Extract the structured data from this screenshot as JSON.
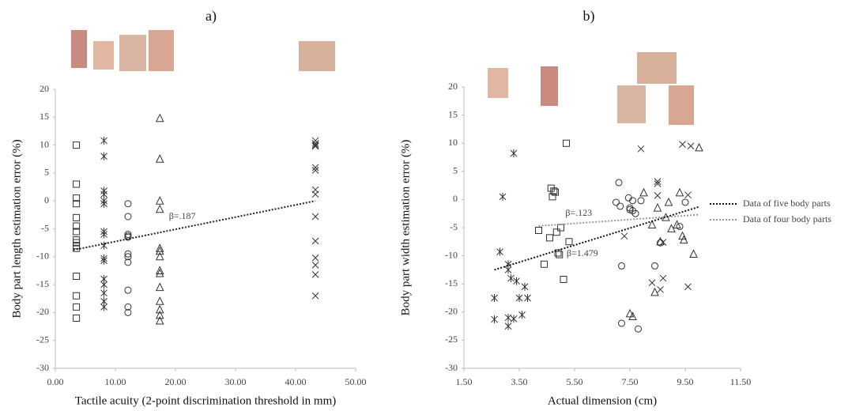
{
  "chart_data": [
    {
      "type": "scatter",
      "title": "a)",
      "xlabel": "Tactile acuity (2-point discrimination threshold in mm)",
      "ylabel": "Body part length estimation error (%)",
      "xlim": [
        0,
        50
      ],
      "ylim": [
        -30,
        20
      ],
      "xticks": [
        {
          "value": 0,
          "label": "0.00"
        },
        {
          "value": 10,
          "label": "10.00"
        },
        {
          "value": 20,
          "label": "20.00"
        },
        {
          "value": 30,
          "label": "30.00"
        },
        {
          "value": 40,
          "label": "40.00"
        },
        {
          "value": 50,
          "label": "50.00"
        }
      ],
      "yticks": [
        -30,
        -25,
        -20,
        -15,
        -10,
        -5,
        0,
        5,
        10,
        15,
        20
      ],
      "series": [
        {
          "marker": "square",
          "color": "#333333",
          "x": [
            3.5,
            3.5,
            3.5,
            3.5,
            3.5,
            3.5,
            3.5,
            3.5,
            3.5,
            3.5,
            3.5,
            3.5,
            3.5,
            3.5,
            3.5
          ],
          "values": [
            10,
            3,
            0.5,
            -0.5,
            -3,
            -4.5,
            -5.5,
            -7,
            -7.5,
            -8,
            -8.5,
            -13.5,
            -17,
            -19,
            -21
          ]
        },
        {
          "marker": "asterisk",
          "color": "#333333",
          "x": [
            8.1,
            8.1,
            8.1,
            8.1,
            8.1,
            8.1,
            8.1,
            8.1,
            8.1,
            8.1,
            8.1,
            8.1,
            8.1,
            8.1,
            8.1,
            8.1
          ],
          "values": [
            10.8,
            8,
            1.8,
            1.2,
            0,
            -0.5,
            -5.5,
            -6,
            -8,
            -10.3,
            -10.7,
            -14,
            -15,
            -16.5,
            -18,
            -19
          ]
        },
        {
          "marker": "circle",
          "color": "#333333",
          "x": [
            12.1,
            12.1,
            12.1,
            12.1,
            12.1,
            12.1,
            12.1,
            12.1,
            12.1,
            12.1,
            12.1
          ],
          "values": [
            -0.5,
            -2.8,
            -6,
            -6.3,
            -6.5,
            -9.5,
            -10,
            -11,
            -16,
            -19,
            -20
          ]
        },
        {
          "marker": "triangle",
          "color": "#333333",
          "x": [
            17.4,
            17.4,
            17.4,
            17.4,
            17.4,
            17.4,
            17.4,
            17.4,
            17.4,
            17.4,
            17.4,
            17.4,
            17.4,
            17.4
          ],
          "values": [
            14.8,
            7.5,
            0,
            -1.5,
            -8.5,
            -9,
            -10,
            -12.5,
            -13,
            -15.5,
            -18,
            -19.5,
            -20.5,
            -21.5
          ]
        },
        {
          "marker": "cross",
          "color": "#333333",
          "x": [
            43.3,
            43.3,
            43.3,
            43.3,
            43.3,
            43.3,
            43.3,
            43.3,
            43.3,
            43.3,
            43.3,
            43.3,
            43.3,
            43.3
          ],
          "values": [
            10.8,
            10.3,
            10,
            9.8,
            6,
            5.5,
            2,
            1.2,
            -2.8,
            -7.2,
            -10.2,
            -11.5,
            -13.2,
            -17
          ]
        }
      ],
      "lines": [
        {
          "color": "#222222",
          "x": [
            3,
            43.3
          ],
          "values": [
            -8.8,
            0
          ],
          "label": "β=.187"
        }
      ]
    },
    {
      "type": "scatter",
      "title": "b)",
      "xlabel": "Actual dimension (cm)",
      "ylabel": "Body part width estimation error (%)",
      "xlim": [
        1.5,
        11.5
      ],
      "ylim": [
        -30,
        20
      ],
      "xticks": [
        {
          "value": 1.5,
          "label": "1.50"
        },
        {
          "value": 3.5,
          "label": "3.50"
        },
        {
          "value": 5.5,
          "label": "5.50"
        },
        {
          "value": 7.5,
          "label": "7.50"
        },
        {
          "value": 9.5,
          "label": "9.50"
        },
        {
          "value": 11.5,
          "label": "11.50"
        }
      ],
      "yticks": [
        -30,
        -25,
        -20,
        -15,
        -10,
        -5,
        0,
        5,
        10,
        15,
        20
      ],
      "legend": "right",
      "series": [
        {
          "marker": "square",
          "color": "#333333",
          "x": [
            4.2,
            4.4,
            4.6,
            4.65,
            4.75,
            4.7,
            4.8,
            4.85,
            4.9,
            4.95,
            5.0,
            5.1,
            5.2,
            5.3
          ],
          "values": [
            -5.5,
            -11.5,
            -6.8,
            2,
            1.5,
            0.5,
            1.3,
            -5.8,
            -9.5,
            -9.8,
            -5,
            -14.2,
            10,
            -7.5
          ]
        },
        {
          "marker": "asterisk",
          "color": "#333333",
          "x": [
            2.6,
            2.6,
            2.8,
            2.9,
            3.1,
            3.1,
            3.1,
            3.2,
            3.3,
            3.3,
            3.4,
            3.5,
            3.6,
            3.7,
            3.8,
            3.1
          ],
          "values": [
            -17.5,
            -21.3,
            -9.3,
            0.5,
            -11.5,
            -12.5,
            -22.5,
            -14,
            8.2,
            -21.2,
            -14.5,
            -17.5,
            -20.5,
            -15.5,
            -17.5,
            -21
          ]
        },
        {
          "marker": "circle",
          "color": "#333333",
          "x": [
            7.1,
            7.0,
            7.15,
            7.2,
            7.2,
            7.45,
            7.5,
            7.6,
            7.6,
            7.7,
            7.8,
            7.9,
            8.4,
            8.6,
            9.3,
            9.5,
            7.5
          ],
          "values": [
            3,
            -0.5,
            -1.2,
            -11.8,
            -22,
            0.3,
            -1.5,
            -2,
            -0.2,
            -2.5,
            -23,
            -0.2,
            -11.8,
            -7.7,
            -4.8,
            -0.5,
            -1.8
          ]
        },
        {
          "marker": "triangle",
          "color": "#333333",
          "x": [
            7.5,
            7.6,
            8.0,
            8.3,
            8.4,
            8.5,
            8.6,
            8.8,
            8.9,
            9.0,
            9.2,
            9.3,
            9.4,
            9.45,
            9.8,
            10.0
          ],
          "values": [
            -20.3,
            -20.8,
            1.2,
            -4.5,
            -16.5,
            -1.5,
            -7.5,
            -3.2,
            -0.5,
            -5.2,
            -4.5,
            1.2,
            -6.5,
            -7.2,
            -9.7,
            9.2
          ]
        },
        {
          "marker": "cross",
          "color": "#333333",
          "x": [
            7.3,
            7.9,
            8.3,
            8.5,
            8.5,
            8.6,
            8.7,
            8.5,
            9.4,
            9.6,
            9.6,
            9.7,
            8.7
          ],
          "values": [
            -6.5,
            9,
            -14.8,
            2.8,
            3.2,
            -16,
            -14,
            0.7,
            9.8,
            0.8,
            -15.5,
            9.5,
            -7.6
          ]
        }
      ],
      "lines": [
        {
          "name": "Data of five body parts",
          "color": "#111111",
          "x": [
            2.6,
            10
          ],
          "values": [
            -12.5,
            -1.3
          ],
          "label": "β=1.479"
        },
        {
          "name": "Data of four body parts",
          "color": "#999999",
          "x": [
            4.2,
            10
          ],
          "values": [
            -4.7,
            -2.7
          ],
          "label": "β=.123"
        }
      ]
    }
  ]
}
